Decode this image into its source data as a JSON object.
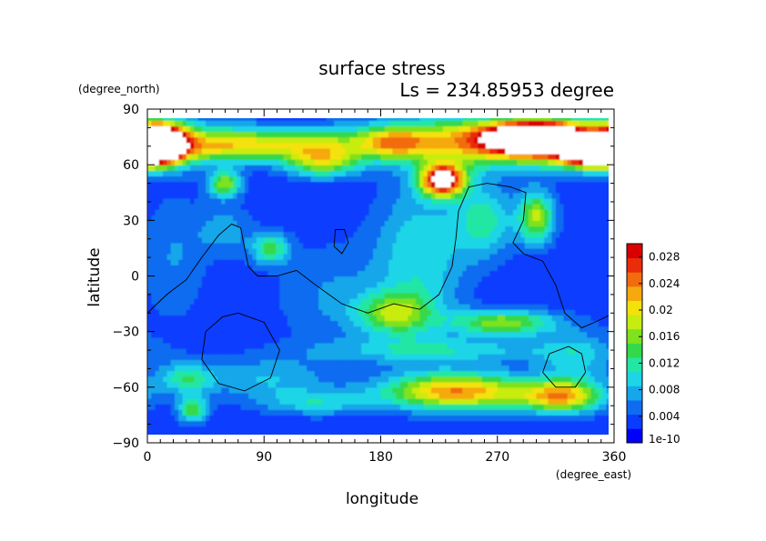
{
  "chart_data": {
    "type": "heatmap",
    "title": "surface stress",
    "subtitle": "Ls = 234.85953 degree",
    "xlabel": "longitude",
    "ylabel": "latitude",
    "xunit": "(degree_east)",
    "yunit": "(degree_north)",
    "xlim": [
      0,
      360
    ],
    "ylim": [
      -90,
      90
    ],
    "x_ticks": [
      "0",
      "90",
      "180",
      "270",
      "360"
    ],
    "y_ticks": [
      "90",
      "60",
      "30",
      "0",
      "−30",
      "−60",
      "−90"
    ],
    "grid": false,
    "colorbar": {
      "min": 0,
      "max": 0.03,
      "tick_labels": [
        "1e-10",
        "0.004",
        "0.008",
        "0.012",
        "0.016",
        "0.02",
        "0.024",
        "0.028"
      ],
      "colors": [
        "#0000ff",
        "#0a3cff",
        "#0f6cf0",
        "#16a6ea",
        "#1cd5e6",
        "#23e6a4",
        "#34d94a",
        "#7ee21e",
        "#c7ec10",
        "#f3e20a",
        "#f5a90d",
        "#f26c0d",
        "#ea2c0b",
        "#d80000"
      ],
      "saturated_color": "#ffffff"
    },
    "field": {
      "background": 0.0025,
      "blobs": [
        {
          "lon": 10,
          "lat": 72,
          "slon": 14,
          "slat": 7,
          "v": 0.034
        },
        {
          "lon": 60,
          "lat": 70,
          "slon": 35,
          "slat": 6,
          "v": 0.011
        },
        {
          "lon": 120,
          "lat": 72,
          "slon": 40,
          "slat": 6,
          "v": 0.011
        },
        {
          "lon": 135,
          "lat": 62,
          "slon": 20,
          "slat": 6,
          "v": 0.014
        },
        {
          "lon": 60,
          "lat": 50,
          "slon": 9,
          "slat": 5,
          "v": 0.014
        },
        {
          "lon": 190,
          "lat": 72,
          "slon": 18,
          "slat": 6,
          "v": 0.011
        },
        {
          "lon": 290,
          "lat": 73,
          "slon": 70,
          "slat": 9,
          "v": 0.026
        },
        {
          "lon": 300,
          "lat": 75,
          "slon": 22,
          "slat": 5,
          "v": 0.034
        },
        {
          "lon": 345,
          "lat": 66,
          "slon": 18,
          "slat": 5,
          "v": 0.029
        },
        {
          "lon": 228,
          "lat": 52,
          "slon": 12,
          "slat": 6,
          "v": 0.031
        },
        {
          "lon": 300,
          "lat": 32,
          "slon": 10,
          "slat": 10,
          "v": 0.015
        },
        {
          "lon": 260,
          "lat": 30,
          "slon": 16,
          "slat": 14,
          "v": 0.009
        },
        {
          "lon": 210,
          "lat": 10,
          "slon": 25,
          "slat": 30,
          "v": 0.008
        },
        {
          "lon": 95,
          "lat": 15,
          "slon": 10,
          "slat": 6,
          "v": 0.011
        },
        {
          "lon": 60,
          "lat": 25,
          "slon": 15,
          "slat": 10,
          "v": 0.005
        },
        {
          "lon": 190,
          "lat": -20,
          "slon": 20,
          "slat": 8,
          "v": 0.012
        },
        {
          "lon": 275,
          "lat": -25,
          "slon": 28,
          "slat": 5,
          "v": 0.014
        },
        {
          "lon": 230,
          "lat": -40,
          "slon": 70,
          "slat": 5,
          "v": 0.007
        },
        {
          "lon": 240,
          "lat": -62,
          "slon": 40,
          "slat": 7,
          "v": 0.021
        },
        {
          "lon": 320,
          "lat": -65,
          "slon": 22,
          "slat": 6,
          "v": 0.018
        },
        {
          "lon": 330,
          "lat": -45,
          "slon": 20,
          "slat": 12,
          "v": 0.006
        },
        {
          "lon": 90,
          "lat": -55,
          "slon": 35,
          "slat": 8,
          "v": 0.006
        },
        {
          "lon": 30,
          "lat": -55,
          "slon": 15,
          "slat": 6,
          "v": 0.009
        },
        {
          "lon": 35,
          "lat": -72,
          "slon": 8,
          "slat": 5,
          "v": 0.012
        },
        {
          "lon": 130,
          "lat": -68,
          "slon": 30,
          "slat": 5,
          "v": 0.007
        },
        {
          "lon": 20,
          "lat": 10,
          "slon": 18,
          "slat": 25,
          "v": 0.004
        },
        {
          "lon": 140,
          "lat": -10,
          "slon": 30,
          "slat": 20,
          "v": 0.004
        }
      ]
    },
    "contours": [
      {
        "name": "topography-contour-1",
        "points": [
          [
            0,
            -20
          ],
          [
            15,
            -10
          ],
          [
            30,
            -2
          ],
          [
            42,
            10
          ],
          [
            55,
            22
          ],
          [
            65,
            28
          ],
          [
            72,
            26
          ],
          [
            75,
            15
          ],
          [
            78,
            5
          ],
          [
            85,
            0
          ],
          [
            100,
            0
          ],
          [
            115,
            3
          ],
          [
            130,
            -5
          ],
          [
            150,
            -15
          ],
          [
            170,
            -20
          ],
          [
            190,
            -15
          ],
          [
            210,
            -18
          ],
          [
            225,
            -10
          ],
          [
            235,
            5
          ],
          [
            238,
            20
          ],
          [
            240,
            35
          ],
          [
            248,
            48
          ],
          [
            262,
            50
          ],
          [
            280,
            48
          ],
          [
            292,
            45
          ],
          [
            290,
            30
          ],
          [
            282,
            18
          ],
          [
            290,
            12
          ],
          [
            305,
            8
          ],
          [
            315,
            -5
          ],
          [
            322,
            -20
          ],
          [
            335,
            -28
          ],
          [
            345,
            -25
          ],
          [
            360,
            -20
          ]
        ]
      },
      {
        "name": "topography-contour-2",
        "points": [
          [
            145,
            25
          ],
          [
            152,
            25
          ],
          [
            155,
            18
          ],
          [
            150,
            12
          ],
          [
            144,
            16
          ],
          [
            145,
            25
          ]
        ]
      },
      {
        "name": "topography-contour-3",
        "points": [
          [
            70,
            -20
          ],
          [
            90,
            -25
          ],
          [
            102,
            -40
          ],
          [
            95,
            -55
          ],
          [
            75,
            -62
          ],
          [
            55,
            -58
          ],
          [
            42,
            -45
          ],
          [
            45,
            -30
          ],
          [
            58,
            -22
          ],
          [
            70,
            -20
          ]
        ]
      },
      {
        "name": "topography-contour-4",
        "points": [
          [
            325,
            -38
          ],
          [
            335,
            -42
          ],
          [
            338,
            -52
          ],
          [
            330,
            -60
          ],
          [
            315,
            -60
          ],
          [
            305,
            -52
          ],
          [
            310,
            -42
          ],
          [
            325,
            -38
          ]
        ]
      }
    ]
  }
}
